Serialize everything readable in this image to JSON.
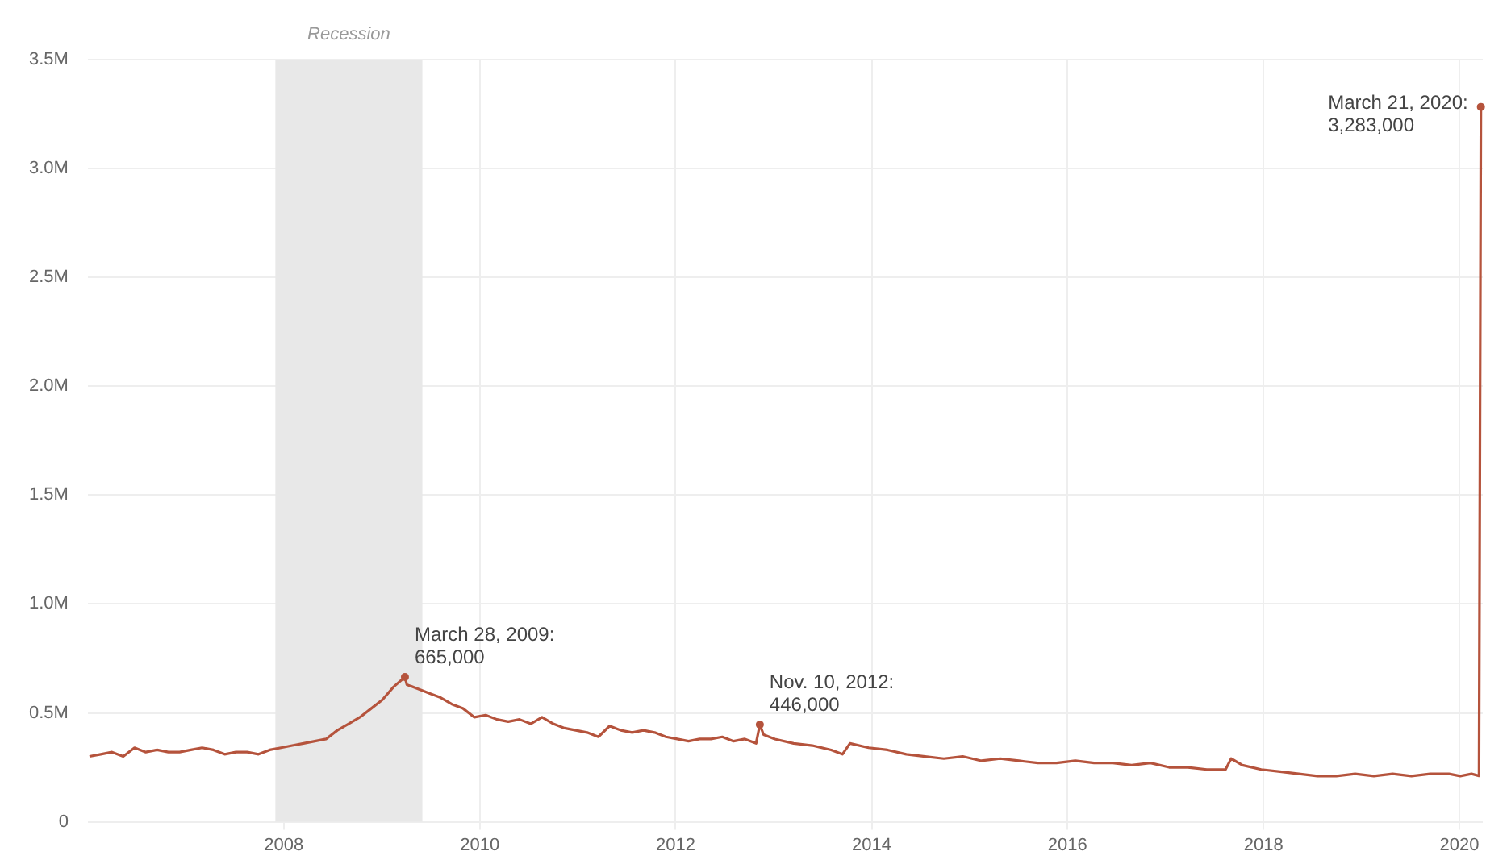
{
  "chart_data": {
    "type": "line",
    "x": [
      "2006-01-07",
      "2006-02-18",
      "2006-04-01",
      "2006-05-13",
      "2006-06-24",
      "2006-08-05",
      "2006-09-16",
      "2006-10-28",
      "2006-12-09",
      "2007-01-20",
      "2007-03-03",
      "2007-04-14",
      "2007-05-26",
      "2007-07-07",
      "2007-08-18",
      "2007-09-29",
      "2007-11-10",
      "2007-12-22",
      "2008-02-02",
      "2008-03-15",
      "2008-04-26",
      "2008-06-07",
      "2008-07-19",
      "2008-08-30",
      "2008-10-11",
      "2008-11-22",
      "2009-01-03",
      "2009-02-14",
      "2009-03-28",
      "2009-04-04",
      "2009-05-16",
      "2009-06-27",
      "2009-08-08",
      "2009-09-19",
      "2009-10-31",
      "2009-12-12",
      "2010-01-23",
      "2010-03-06",
      "2010-04-17",
      "2010-05-29",
      "2010-07-10",
      "2010-08-21",
      "2010-10-02",
      "2010-11-13",
      "2010-12-25",
      "2011-02-05",
      "2011-03-19",
      "2011-04-30",
      "2011-06-11",
      "2011-07-23",
      "2011-09-03",
      "2011-10-15",
      "2011-11-26",
      "2012-01-07",
      "2012-02-18",
      "2012-03-31",
      "2012-05-12",
      "2012-06-23",
      "2012-08-04",
      "2012-09-15",
      "2012-10-27",
      "2012-11-10",
      "2012-11-24",
      "2013-01-05",
      "2013-03-16",
      "2013-05-25",
      "2013-08-03",
      "2013-09-14",
      "2013-10-12",
      "2013-12-21",
      "2014-03-01",
      "2014-05-10",
      "2014-07-19",
      "2014-09-27",
      "2014-12-06",
      "2015-02-14",
      "2015-04-25",
      "2015-07-04",
      "2015-09-12",
      "2015-11-21",
      "2016-01-30",
      "2016-04-09",
      "2016-06-18",
      "2016-08-27",
      "2016-11-05",
      "2017-01-14",
      "2017-03-25",
      "2017-06-03",
      "2017-08-12",
      "2017-09-02",
      "2017-10-14",
      "2017-12-23",
      "2018-03-03",
      "2018-05-12",
      "2018-07-21",
      "2018-09-29",
      "2018-12-08",
      "2019-02-16",
      "2019-04-27",
      "2019-07-06",
      "2019-09-14",
      "2019-11-23",
      "2020-01-04",
      "2020-02-15",
      "2020-03-14",
      "2020-03-21"
    ],
    "series": [
      {
        "color": "#b5533c",
        "values": [
          0.3,
          0.31,
          0.32,
          0.3,
          0.34,
          0.32,
          0.33,
          0.32,
          0.32,
          0.33,
          0.34,
          0.33,
          0.31,
          0.32,
          0.32,
          0.31,
          0.33,
          0.34,
          0.35,
          0.36,
          0.37,
          0.38,
          0.42,
          0.45,
          0.48,
          0.52,
          0.56,
          0.62,
          0.665,
          0.63,
          0.61,
          0.59,
          0.57,
          0.54,
          0.52,
          0.48,
          0.49,
          0.47,
          0.46,
          0.47,
          0.45,
          0.48,
          0.45,
          0.43,
          0.42,
          0.41,
          0.39,
          0.44,
          0.42,
          0.41,
          0.42,
          0.41,
          0.39,
          0.38,
          0.37,
          0.38,
          0.38,
          0.39,
          0.37,
          0.38,
          0.36,
          0.446,
          0.4,
          0.38,
          0.36,
          0.35,
          0.33,
          0.31,
          0.36,
          0.34,
          0.33,
          0.31,
          0.3,
          0.29,
          0.3,
          0.28,
          0.29,
          0.28,
          0.27,
          0.27,
          0.28,
          0.27,
          0.27,
          0.26,
          0.27,
          0.25,
          0.25,
          0.24,
          0.24,
          0.29,
          0.26,
          0.24,
          0.23,
          0.22,
          0.21,
          0.21,
          0.22,
          0.21,
          0.22,
          0.21,
          0.22,
          0.22,
          0.21,
          0.22,
          0.211,
          3.283
        ]
      }
    ],
    "xlim": [
      "2006-01-01",
      "2020-03-28"
    ],
    "xticks": [
      "2008",
      "2010",
      "2012",
      "2014",
      "2016",
      "2018",
      "2020"
    ],
    "ylim": [
      0,
      3.5
    ],
    "yticks": [
      {
        "value": 0,
        "label": "0"
      },
      {
        "value": 0.5,
        "label": "0.5M"
      },
      {
        "value": 1,
        "label": "1.0M"
      },
      {
        "value": 1.5,
        "label": "1.5M"
      },
      {
        "value": 2,
        "label": "2.0M"
      },
      {
        "value": 2.5,
        "label": "2.5M"
      },
      {
        "value": 3,
        "label": "3.0M"
      },
      {
        "value": 3.5,
        "label": "3.5M"
      }
    ],
    "bands": [
      {
        "axis": "x",
        "from": "2007-12",
        "to": "2009-06",
        "label": "Recession",
        "color": "#e8e8e8"
      }
    ],
    "annotations": [
      {
        "text": "March 28, 2009:\n665,000",
        "x": "2009-03-28",
        "y": 0.665
      },
      {
        "text": "Nov. 10, 2012:\n446,000",
        "x": "2012-11-10",
        "y": 0.446
      },
      {
        "text": "March 21, 2020:\n3,283,000",
        "x": "2020-03-21",
        "y": 3.283
      }
    ],
    "grid": true,
    "legend": false,
    "marker": "none",
    "line_style": "solid"
  }
}
